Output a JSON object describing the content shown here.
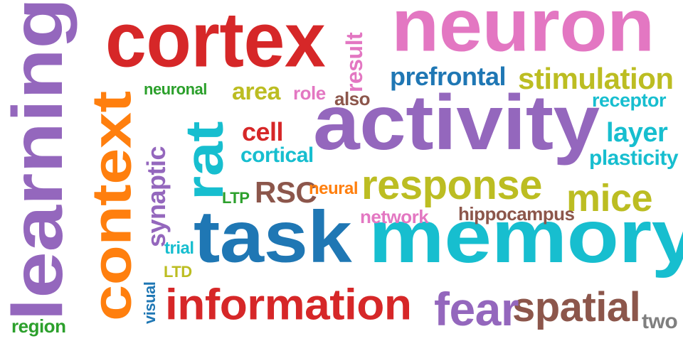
{
  "word_cloud": {
    "words": [
      {
        "text": "learning",
        "color": "#9467bd"
      },
      {
        "text": "context",
        "color": "#ff7f0e"
      },
      {
        "text": "cortex",
        "color": "#d62728"
      },
      {
        "text": "neuron",
        "color": "#e377c2"
      },
      {
        "text": "activity",
        "color": "#9467bd"
      },
      {
        "text": "memory",
        "color": "#17becf"
      },
      {
        "text": "task",
        "color": "#1f77b4"
      },
      {
        "text": "rat",
        "color": "#17becf"
      },
      {
        "text": "information",
        "color": "#d62728"
      },
      {
        "text": "response",
        "color": "#bcbd22"
      },
      {
        "text": "spatial",
        "color": "#8c564b"
      },
      {
        "text": "fear",
        "color": "#9467bd"
      },
      {
        "text": "mice",
        "color": "#bcbd22"
      },
      {
        "text": "stimulation",
        "color": "#bcbd22"
      },
      {
        "text": "prefrontal",
        "color": "#1f77b4"
      },
      {
        "text": "layer",
        "color": "#17becf"
      },
      {
        "text": "plasticity",
        "color": "#17becf"
      },
      {
        "text": "receptor",
        "color": "#17becf"
      },
      {
        "text": "synaptic",
        "color": "#9467bd"
      },
      {
        "text": "result",
        "color": "#e377c2"
      },
      {
        "text": "cell",
        "color": "#d62728"
      },
      {
        "text": "cortical",
        "color": "#17becf"
      },
      {
        "text": "area",
        "color": "#bcbd22"
      },
      {
        "text": "role",
        "color": "#e377c2"
      },
      {
        "text": "also",
        "color": "#8c564b"
      },
      {
        "text": "neuronal",
        "color": "#2ca02c"
      },
      {
        "text": "RSC",
        "color": "#8c564b"
      },
      {
        "text": "neural",
        "color": "#ff7f0e"
      },
      {
        "text": "LTP",
        "color": "#2ca02c"
      },
      {
        "text": "network",
        "color": "#e377c2"
      },
      {
        "text": "hippocampus",
        "color": "#8c564b"
      },
      {
        "text": "trial",
        "color": "#17becf"
      },
      {
        "text": "LTD",
        "color": "#bcbd22"
      },
      {
        "text": "visual",
        "color": "#1f77b4"
      },
      {
        "text": "region",
        "color": "#2ca02c"
      },
      {
        "text": "two",
        "color": "#7f7f7f"
      }
    ]
  }
}
